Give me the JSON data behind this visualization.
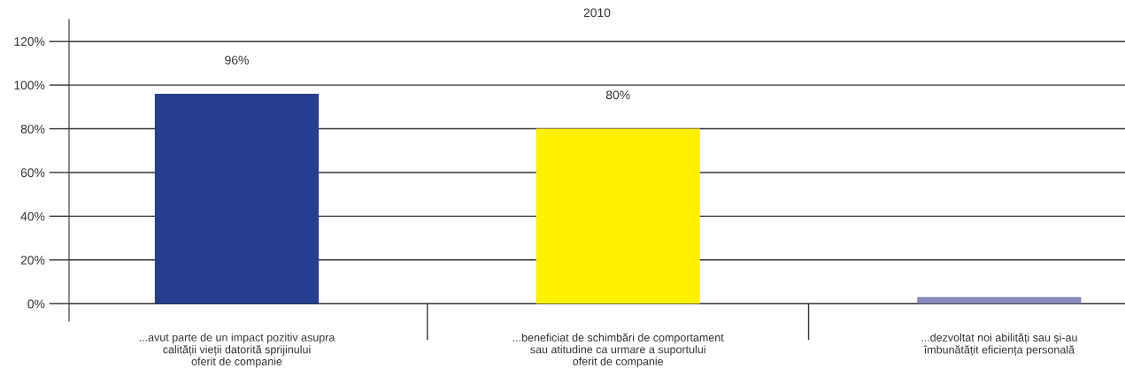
{
  "chart_data": {
    "type": "bar",
    "title": "2010",
    "categories": [
      "...avut parte de un impact pozitiv asupra\ncalității vieții datorită sprijinului\noferit de companie",
      "...beneficiat de schimbări de comportament\nsau atitudine ca urmare a suportului\noferit de companie",
      "...dezvoltat noi abilități sau și-au\nîmbunătățit eficiența personală"
    ],
    "values": [
      96,
      80,
      3
    ],
    "colors": [
      "#253f8e",
      "#fff200",
      "#8888bb"
    ],
    "value_labels": [
      "96%",
      "80%",
      null
    ],
    "ylim": [
      -8,
      130
    ],
    "yticks": [
      {
        "value": 0,
        "label": "0%"
      },
      {
        "value": 20,
        "label": "20%"
      },
      {
        "value": 40,
        "label": "40%"
      },
      {
        "value": 60,
        "label": "60%"
      },
      {
        "value": 80,
        "label": "80%"
      },
      {
        "value": 100,
        "label": "100%"
      },
      {
        "value": 120,
        "label": "120%"
      }
    ],
    "grid": "y",
    "legend": false
  }
}
